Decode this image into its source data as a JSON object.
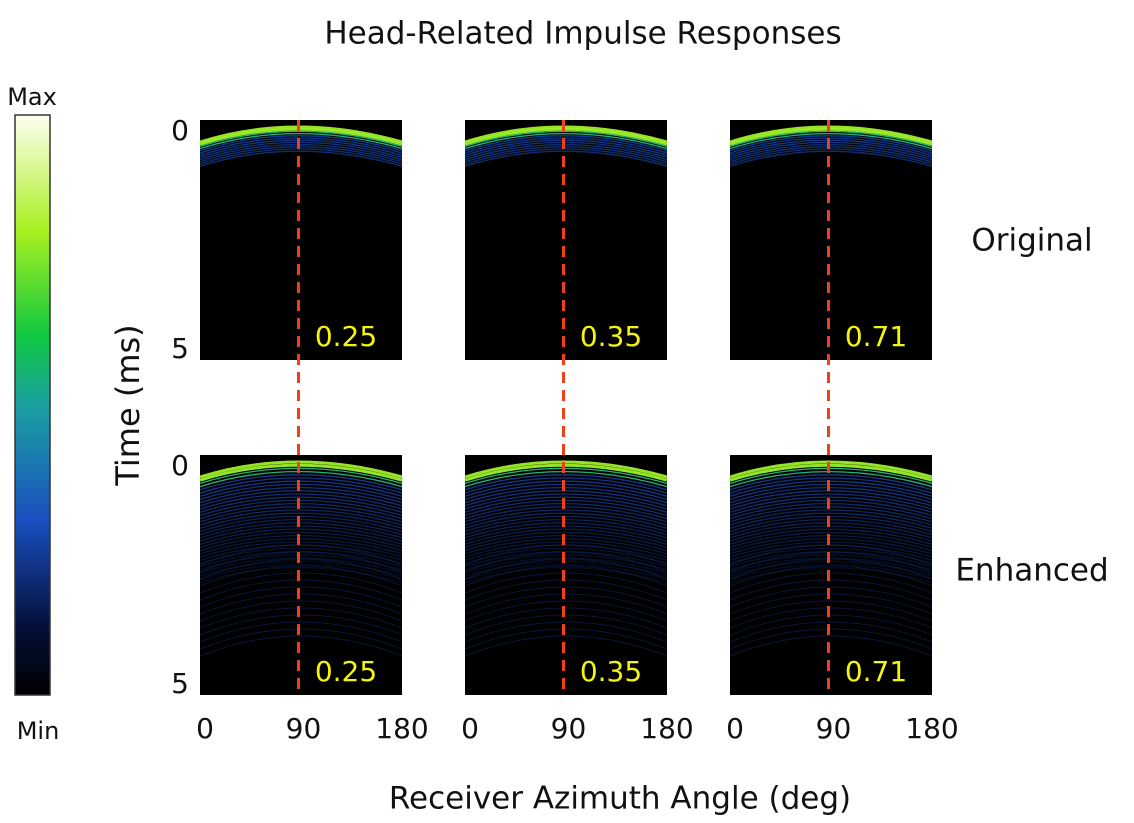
{
  "title": "Head-Related Impulse Responses",
  "colorbar": {
    "max_label": "Max",
    "min_label": "Min"
  },
  "y_axis": {
    "label": "Time (ms)",
    "ticks": [
      0,
      5
    ]
  },
  "x_axis": {
    "label": "Receiver Azimuth Angle (deg)",
    "ticks": [
      0,
      90,
      180
    ]
  },
  "rows": [
    {
      "label": "Original",
      "values": [
        0.25,
        0.35,
        0.71
      ]
    },
    {
      "label": "Enhanced",
      "values": [
        0.25,
        0.35,
        0.71
      ]
    }
  ]
}
